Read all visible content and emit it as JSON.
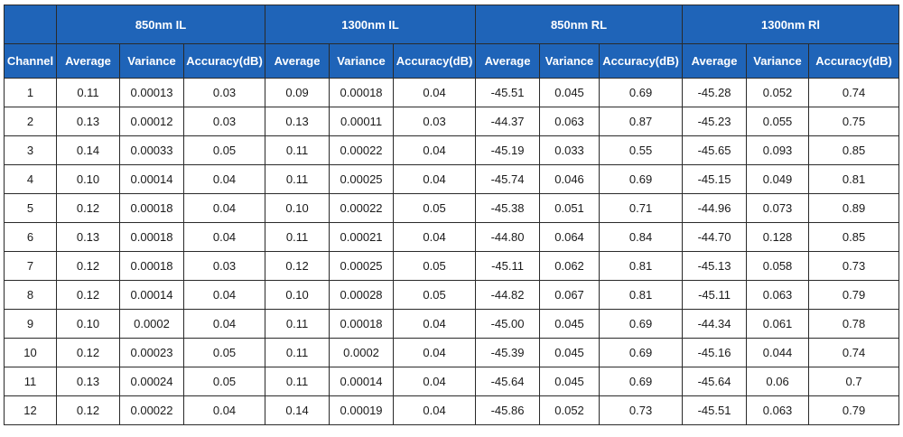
{
  "table": {
    "group_headers": [
      "850nm IL",
      "1300nm IL",
      "850nm RL",
      "1300nm Rl"
    ],
    "first_column_header": "Channel",
    "sub_headers": [
      "Average",
      "Variance",
      "Accuracy(dB)"
    ],
    "rows": [
      [
        "1",
        "0.11",
        "0.00013",
        "0.03",
        "0.09",
        "0.00018",
        "0.04",
        "-45.51",
        "0.045",
        "0.69",
        "-45.28",
        "0.052",
        "0.74"
      ],
      [
        "2",
        "0.13",
        "0.00012",
        "0.03",
        "0.13",
        "0.00011",
        "0.03",
        "-44.37",
        "0.063",
        "0.87",
        "-45.23",
        "0.055",
        "0.75"
      ],
      [
        "3",
        "0.14",
        "0.00033",
        "0.05",
        "0.11",
        "0.00022",
        "0.04",
        "-45.19",
        "0.033",
        "0.55",
        "-45.65",
        "0.093",
        "0.85"
      ],
      [
        "4",
        "0.10",
        "0.00014",
        "0.04",
        "0.11",
        "0.00025",
        "0.04",
        "-45.74",
        "0.046",
        "0.69",
        "-45.15",
        "0.049",
        "0.81"
      ],
      [
        "5",
        "0.12",
        "0.00018",
        "0.04",
        "0.10",
        "0.00022",
        "0.05",
        "-45.38",
        "0.051",
        "0.71",
        "-44.96",
        "0.073",
        "0.89"
      ],
      [
        "6",
        "0.13",
        "0.00018",
        "0.04",
        "0.11",
        "0.00021",
        "0.04",
        "-44.80",
        "0.064",
        "0.84",
        "-44.70",
        "0.128",
        "0.85"
      ],
      [
        "7",
        "0.12",
        "0.00018",
        "0.03",
        "0.12",
        "0.00025",
        "0.05",
        "-45.11",
        "0.062",
        "0.81",
        "-45.13",
        "0.058",
        "0.73"
      ],
      [
        "8",
        "0.12",
        "0.00014",
        "0.04",
        "0.10",
        "0.00028",
        "0.05",
        "-44.82",
        "0.067",
        "0.81",
        "-45.11",
        "0.063",
        "0.79"
      ],
      [
        "9",
        "0.10",
        "0.0002",
        "0.04",
        "0.11",
        "0.00018",
        "0.04",
        "-45.00",
        "0.045",
        "0.69",
        "-44.34",
        "0.061",
        "0.78"
      ],
      [
        "10",
        "0.12",
        "0.00023",
        "0.05",
        "0.11",
        "0.0002",
        "0.04",
        "-45.39",
        "0.045",
        "0.69",
        "-45.16",
        "0.044",
        "0.74"
      ],
      [
        "11",
        "0.13",
        "0.00024",
        "0.05",
        "0.11",
        "0.00014",
        "0.04",
        "-45.64",
        "0.045",
        "0.69",
        "-45.64",
        "0.06",
        "0.7"
      ],
      [
        "12",
        "0.12",
        "0.00022",
        "0.04",
        "0.14",
        "0.00019",
        "0.04",
        "-45.86",
        "0.052",
        "0.73",
        "-45.51",
        "0.063",
        "0.79"
      ]
    ]
  },
  "colors": {
    "header_background": "#1f64b8",
    "header_text": "#ffffff",
    "cell_text": "#1a1a1a",
    "grid_line": "#2a2a2a"
  }
}
